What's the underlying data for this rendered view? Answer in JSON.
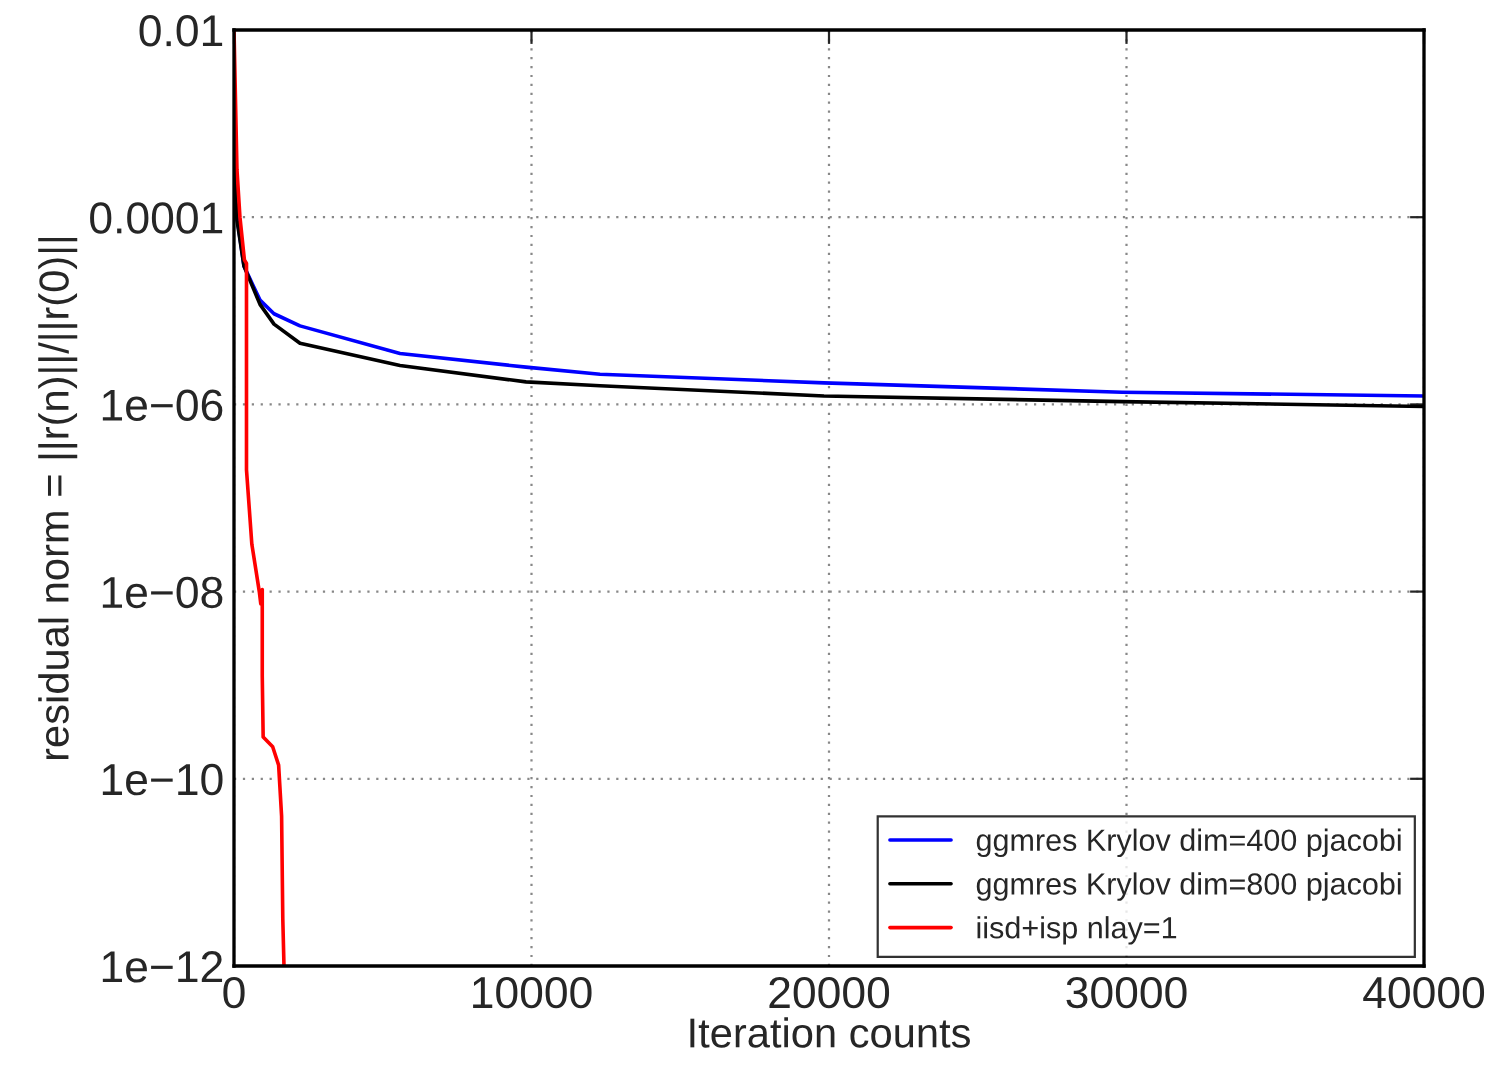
{
  "chart_data": {
    "type": "line",
    "xlabel": "Iteration counts",
    "ylabel": "residual norm = ||r(n)||/||r(0)||",
    "log": "y",
    "grid": true,
    "legend": "bottom right",
    "line_style": "solid",
    "marker": "none",
    "xlim": [
      0,
      40000
    ],
    "xticks": [
      0,
      10000,
      20000,
      30000,
      40000
    ],
    "ylim": [
      1e-12,
      0.01
    ],
    "yticks": [
      {
        "value": 0.01,
        "label": "0.01"
      },
      {
        "value": 0.0001,
        "label": "0.0001"
      },
      {
        "value": 1e-06,
        "label": "1e−06"
      },
      {
        "value": 1e-08,
        "label": "1e−08"
      },
      {
        "value": 1e-10,
        "label": "1e−10"
      },
      {
        "value": 1e-12,
        "label": "1e−12"
      }
    ],
    "series": [
      {
        "name": "ggmres Krylov dim=400 pjacobi",
        "color": "#0000ff",
        "x": [
          100,
          336,
          874,
          1345,
          2218,
          5580,
          9815,
          12303,
          19832,
          29849,
          40000
        ],
        "values": [
          0.0001,
          3e-05,
          1.3e-05,
          9.3e-06,
          6.9e-06,
          3.5e-06,
          2.5e-06,
          2.1e-06,
          1.7e-06,
          1.35e-06,
          1.23e-06
        ]
      },
      {
        "name": "ggmres Krylov dim=800 pjacobi",
        "color": "#000000",
        "x": [
          0,
          100,
          336,
          874,
          1345,
          2218,
          5580,
          9815,
          12303,
          19832,
          29849,
          40000
        ],
        "values": [
          0.0004,
          9.3e-05,
          3e-05,
          1.17e-05,
          7.2e-06,
          4.5e-06,
          2.6e-06,
          1.74e-06,
          1.58e-06,
          1.23e-06,
          1.07e-06,
          9.5e-07
        ]
      },
      {
        "name": "iisd+isp nlay=1",
        "color": "#ff0000",
        "x": [
          0,
          100,
          200,
          350,
          420,
          420,
          600,
          850,
          900,
          950,
          950,
          980,
          1300,
          1500,
          1600,
          1640,
          1680
        ],
        "values": [
          0.01,
          0.00032,
          0.0001,
          3.5e-05,
          3.2e-05,
          2e-07,
          3.2e-08,
          1e-08,
          7.4e-09,
          1.05e-08,
          1.26e-09,
          2.8e-10,
          2.2e-10,
          1.4e-10,
          4e-11,
          3.2e-12,
          1e-12
        ]
      }
    ]
  }
}
